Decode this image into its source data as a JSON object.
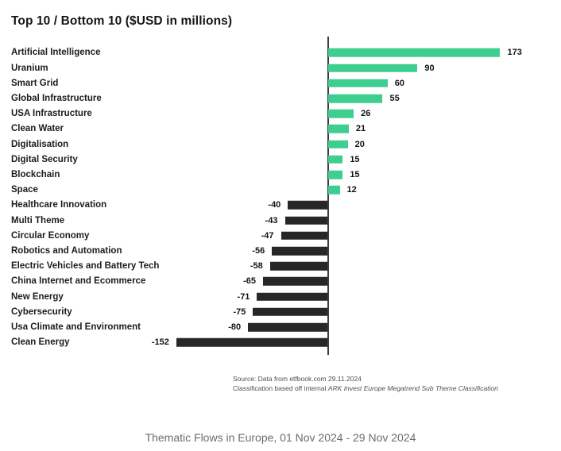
{
  "title": "Top 10 / Bottom 10 ($USD in millions)",
  "caption": "Thematic Flows in Europe, 01 Nov 2024 - 29 Nov 2024",
  "source": {
    "line1": "Source: Data from etfbook.com 29.11.2024",
    "line2_prefix": "Classification based off internal ",
    "line2_italic": "ARK Invest Europe Megatrend Sub Theme Classification"
  },
  "chart_data": {
    "type": "bar",
    "orientation": "horizontal",
    "title": "Top 10 / Bottom 10 ($USD in millions)",
    "xlabel": "",
    "ylabel": "",
    "xlim": [
      -200,
      220
    ],
    "grid": false,
    "positive_color": "#3ECE8F",
    "negative_color": "#272727",
    "categories": [
      "Artificial Intelligence",
      "Uranium",
      "Smart Grid",
      "Global Infrastructure",
      "USA Infrastructure",
      "Clean Water",
      "Digitalisation",
      "Digital Security",
      "Blockchain",
      "Space",
      "Healthcare Innovation",
      "Multi Theme",
      "Circular Economy",
      "Robotics and Automation",
      "Electric Vehicles and Battery Tech",
      "China Internet and Ecommerce",
      "New Energy",
      "Cybersecurity",
      "Usa Climate and Environment",
      "Clean Energy"
    ],
    "values": [
      173,
      90,
      60,
      55,
      26,
      21,
      20,
      15,
      15,
      12,
      -40,
      -43,
      -47,
      -56,
      -58,
      -65,
      -71,
      -75,
      -80,
      -152
    ]
  }
}
